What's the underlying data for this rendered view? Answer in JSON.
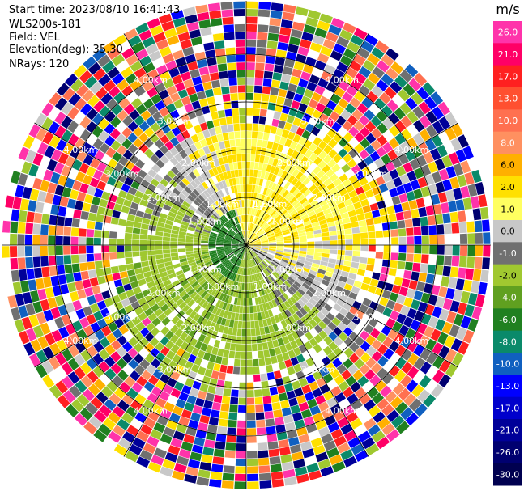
{
  "header": {
    "start_time": "Start time: 2023/08/10 16:41:43",
    "instrument": "WLS200s-181",
    "field": "Field: VEL",
    "elevation": "Elevation(deg): 35.30",
    "nrays": "NRays: 120"
  },
  "chart_data": {
    "type": "heatmap",
    "projection": "polar-ppi",
    "field": "VEL",
    "nrays": 120,
    "elevation_deg": 35.3,
    "range_ring_labels": [
      "1.00km",
      "2.00km",
      "3.00km",
      "4.00km"
    ],
    "colorbar": {
      "title": "m/s",
      "ticks": [
        "26.0",
        "21.0",
        "17.0",
        "13.0",
        "10.0",
        "8.0",
        "6.0",
        "2.0",
        "1.0",
        "0.0",
        "-1.0",
        "-2.0",
        "-4.0",
        "-6.0",
        "-8.0",
        "-10.0",
        "-13.0",
        "-17.0",
        "-21.0",
        "-26.0",
        "-30.0"
      ],
      "colors": [
        "#ff33aa",
        "#ff0066",
        "#ff2020",
        "#ff5030",
        "#ff7050",
        "#ff9060",
        "#ffb000",
        "#ffe000",
        "#ffff60",
        "#c8c8c8",
        "#707070",
        "#a0c830",
        "#60a020",
        "#208020",
        "#0a8a6a",
        "#1060c0",
        "#0000ff",
        "#0000cc",
        "#000099",
        "#000070",
        "#000050"
      ]
    }
  }
}
